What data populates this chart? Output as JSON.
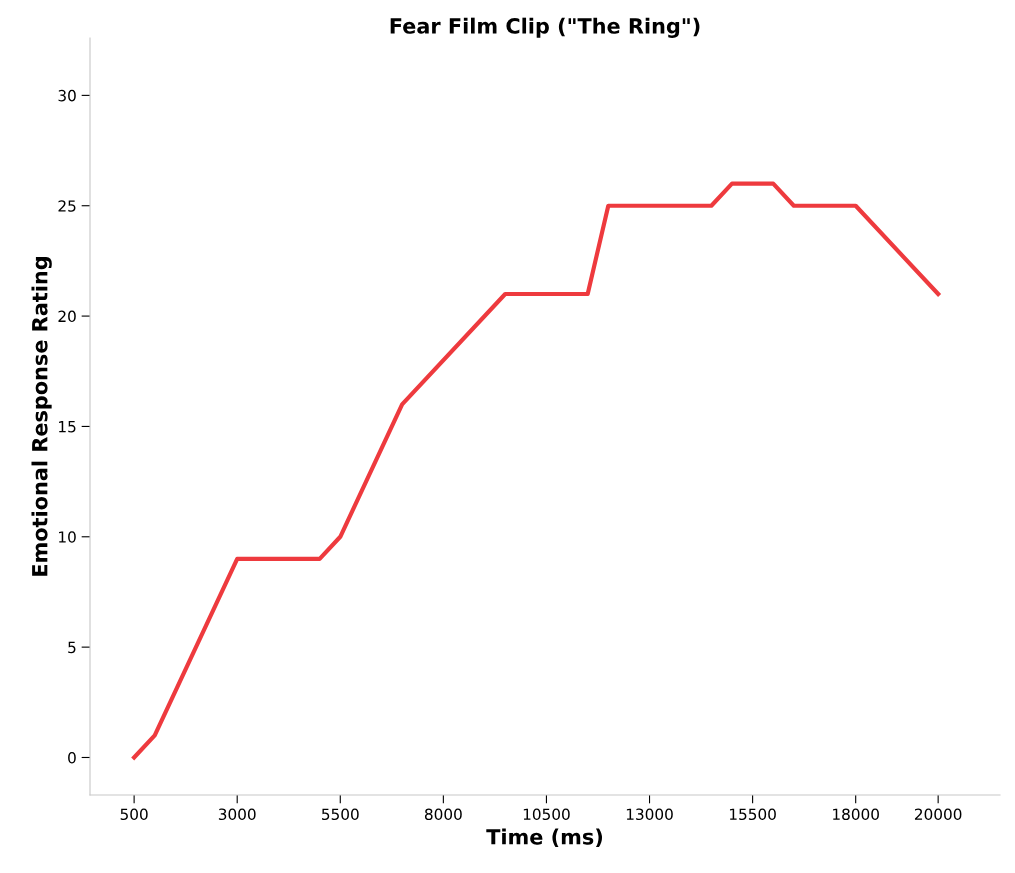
{
  "chart_data": {
    "type": "line",
    "title": "Fear Film Clip (\"The Ring\")",
    "xlabel": "Time (ms)",
    "ylabel": "Emotional Response Rating",
    "x": [
      500,
      1000,
      3000,
      5000,
      5500,
      7000,
      9500,
      11500,
      12000,
      14500,
      15000,
      16000,
      16500,
      18000,
      20000
    ],
    "series": [
      {
        "color": "#ee3a3e",
        "values": [
          0,
          1,
          9,
          9,
          10,
          16,
          21,
          21,
          25,
          25,
          26,
          26,
          25,
          25,
          21
        ]
      }
    ],
    "xlim": [
      -570,
      21500
    ],
    "xticks": [
      500,
      3000,
      5500,
      8000,
      10500,
      13000,
      15500,
      18000,
      20000
    ],
    "ylim": [
      -1.7,
      32.6
    ],
    "yticks": [
      0,
      5,
      10,
      15,
      20,
      25,
      30
    ],
    "grid": false,
    "legend": false,
    "marker": "none",
    "line_style": "solid"
  }
}
